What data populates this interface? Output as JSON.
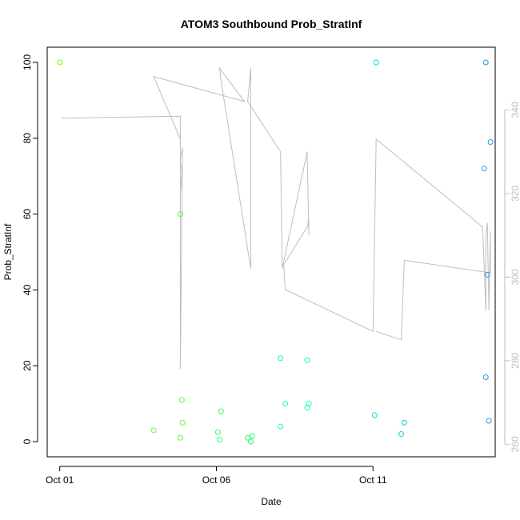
{
  "chart_data": {
    "type": "scatter",
    "title": "ATOM3 Southbound Prob_StratInf",
    "xlabel": "Date",
    "ylabel": "Prob_StratInf",
    "x_tick_labels": [
      "Oct 01",
      "Oct 06",
      "Oct 11"
    ],
    "x_tick_values": [
      0,
      5,
      10
    ],
    "xlim": [
      -0.4,
      13.9
    ],
    "ylim": [
      -4,
      104
    ],
    "y_ticks": [
      0,
      20,
      40,
      60,
      80,
      100
    ],
    "y2lim": [
      257,
      355
    ],
    "y2_ticks": [
      260,
      280,
      300,
      320,
      340
    ],
    "grid": false,
    "colors": {
      "points": "#00e87b",
      "line": "#bebebe",
      "axis_right": "#bdbdbd"
    },
    "series": [
      {
        "type": "scatter",
        "points": [
          {
            "x": 0.0,
            "y": 100,
            "color": "#7cfc00"
          },
          {
            "x": 3.0,
            "y": 3,
            "color": "#66ff33"
          },
          {
            "x": 3.85,
            "y": 60,
            "color": "#55ff33"
          },
          {
            "x": 3.85,
            "y": 1,
            "color": "#55ff33"
          },
          {
            "x": 3.9,
            "y": 11,
            "color": "#55ff33"
          },
          {
            "x": 3.92,
            "y": 5,
            "color": "#55ff33"
          },
          {
            "x": 5.05,
            "y": 2.5,
            "color": "#33ff55"
          },
          {
            "x": 5.1,
            "y": 0.5,
            "color": "#33ff55"
          },
          {
            "x": 5.15,
            "y": 8,
            "color": "#33ff55"
          },
          {
            "x": 6.0,
            "y": 1,
            "color": "#22ff66"
          },
          {
            "x": 6.1,
            "y": 0,
            "color": "#22ff66"
          },
          {
            "x": 6.15,
            "y": 1.5,
            "color": "#22ff66"
          },
          {
            "x": 7.05,
            "y": 4,
            "color": "#1aff88"
          },
          {
            "x": 7.05,
            "y": 22,
            "color": "#1aff88"
          },
          {
            "x": 7.2,
            "y": 10,
            "color": "#1aff88"
          },
          {
            "x": 7.9,
            "y": 9,
            "color": "#11ffaa"
          },
          {
            "x": 7.9,
            "y": 21.5,
            "color": "#11ffaa"
          },
          {
            "x": 7.95,
            "y": 10,
            "color": "#11ffaa"
          },
          {
            "x": 10.05,
            "y": 7,
            "color": "#00e0e0"
          },
          {
            "x": 10.1,
            "y": 100,
            "color": "#00e0e0"
          },
          {
            "x": 10.9,
            "y": 2,
            "color": "#00d0d8"
          },
          {
            "x": 11.0,
            "y": 5,
            "color": "#00d0d8"
          },
          {
            "x": 13.55,
            "y": 72,
            "color": "#1a9cf0"
          },
          {
            "x": 13.6,
            "y": 100,
            "color": "#1a9cf0"
          },
          {
            "x": 13.6,
            "y": 17,
            "color": "#1a9cf0"
          },
          {
            "x": 13.65,
            "y": 44,
            "color": "#1a9cf0"
          },
          {
            "x": 13.7,
            "y": 5.5,
            "color": "#1a9cf0"
          },
          {
            "x": 13.75,
            "y": 79,
            "color": "#1a9cf0"
          }
        ]
      },
      {
        "type": "line",
        "axis": "right",
        "points": [
          [
            0.05,
            338
          ],
          [
            3.85,
            338.5
          ],
          [
            3.85,
            320
          ],
          [
            3.9,
            325
          ],
          [
            3.85,
            328
          ],
          [
            3.92,
            331
          ],
          [
            3.85,
            278
          ],
          [
            3.85,
            333
          ],
          [
            3.0,
            348
          ],
          [
            5.9,
            342
          ],
          [
            5.1,
            350
          ],
          [
            5.15,
            347
          ],
          [
            6.1,
            302
          ],
          [
            6.1,
            350
          ],
          [
            6.0,
            342
          ],
          [
            7.05,
            330
          ],
          [
            7.1,
            302
          ],
          [
            7.9,
            330
          ],
          [
            7.95,
            310
          ],
          [
            7.95,
            314
          ],
          [
            7.9,
            312
          ],
          [
            7.15,
            303
          ],
          [
            7.2,
            297
          ],
          [
            10.0,
            287
          ],
          [
            10.1,
            333
          ],
          [
            13.5,
            312
          ],
          [
            13.6,
            292
          ],
          [
            13.6,
            310
          ],
          [
            13.65,
            313
          ],
          [
            13.7,
            292
          ],
          [
            13.75,
            311
          ],
          [
            13.75,
            301
          ],
          [
            11.0,
            304
          ],
          [
            10.9,
            285
          ],
          [
            10.1,
            287
          ]
        ]
      }
    ]
  }
}
